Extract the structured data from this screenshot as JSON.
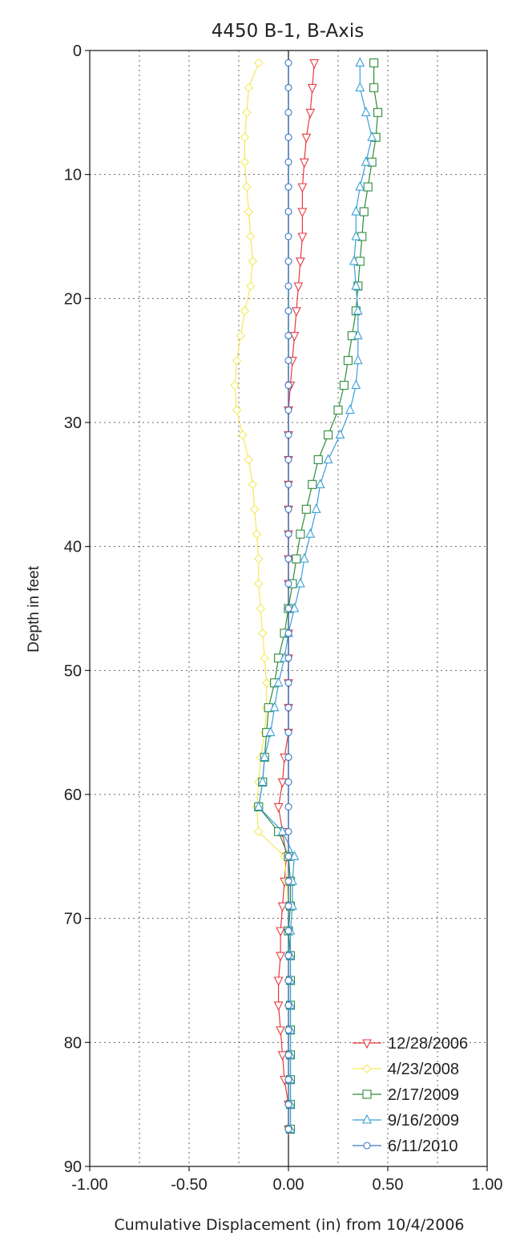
{
  "chart_data": {
    "type": "line",
    "title": "4450 B-1, B-Axis",
    "xlabel": "Cumulative Displacement (in) from 10/4/2006",
    "ylabel": "Depth in feet",
    "xlim": [
      -1.0,
      1.0
    ],
    "ylim": [
      0,
      90
    ],
    "y_inverted": true,
    "x_ticks": [
      -1.0,
      -0.5,
      0.0,
      0.5,
      1.0
    ],
    "x_tick_labels": [
      "-1.00",
      "-0.50",
      "0.00",
      "0.50",
      "1.00"
    ],
    "y_ticks": [
      0,
      10,
      20,
      30,
      40,
      50,
      60,
      70,
      80,
      90
    ],
    "y_tick_labels": [
      "0",
      "10",
      "20",
      "30",
      "40",
      "50",
      "60",
      "70",
      "80",
      "90"
    ],
    "grid": "dotted",
    "legend_position": "bottom-right",
    "depths": [
      1,
      3,
      5,
      7,
      9,
      11,
      13,
      15,
      17,
      19,
      21,
      23,
      25,
      27,
      29,
      31,
      33,
      35,
      37,
      39,
      41,
      43,
      45,
      47,
      49,
      51,
      53,
      55,
      57,
      59,
      61,
      63,
      65,
      67,
      69,
      71,
      73,
      75,
      77,
      79,
      81,
      83,
      85,
      87
    ],
    "series": [
      {
        "name": "12/28/2006",
        "color": "#e8393f",
        "marker": "triangle-down",
        "values": [
          0.13,
          0.12,
          0.11,
          0.09,
          0.08,
          0.07,
          0.07,
          0.07,
          0.06,
          0.05,
          0.04,
          0.03,
          0.02,
          0.01,
          0.0,
          0.0,
          0.0,
          0.0,
          0.0,
          0.0,
          0.0,
          0.0,
          0.0,
          0.0,
          0.0,
          0.0,
          0.0,
          0.0,
          -0.02,
          -0.03,
          -0.05,
          -0.03,
          -0.01,
          -0.02,
          -0.03,
          -0.04,
          -0.04,
          -0.05,
          -0.05,
          -0.04,
          -0.03,
          -0.02,
          0.0,
          0.0
        ]
      },
      {
        "name": "4/23/2008",
        "color": "#f5e85a",
        "marker": "diamond",
        "values": [
          -0.15,
          -0.2,
          -0.21,
          -0.22,
          -0.22,
          -0.21,
          -0.2,
          -0.19,
          -0.18,
          -0.19,
          -0.22,
          -0.24,
          -0.26,
          -0.27,
          -0.26,
          -0.23,
          -0.2,
          -0.18,
          -0.17,
          -0.16,
          -0.15,
          -0.15,
          -0.14,
          -0.13,
          -0.12,
          -0.11,
          -0.11,
          -0.12,
          -0.14,
          -0.15,
          -0.16,
          -0.15,
          -0.02,
          -0.01,
          0.0,
          0.0,
          0.0,
          0.0,
          0.0,
          0.0,
          0.0,
          0.0,
          0.0,
          0.0
        ]
      },
      {
        "name": "2/17/2009",
        "color": "#2e8b3a",
        "marker": "square",
        "values": [
          0.43,
          0.43,
          0.45,
          0.44,
          0.42,
          0.4,
          0.38,
          0.37,
          0.36,
          0.35,
          0.34,
          0.32,
          0.3,
          0.28,
          0.25,
          0.2,
          0.15,
          0.12,
          0.09,
          0.06,
          0.04,
          0.02,
          0.0,
          -0.02,
          -0.05,
          -0.07,
          -0.1,
          -0.11,
          -0.12,
          -0.13,
          -0.15,
          -0.05,
          0.0,
          0.01,
          0.01,
          0.0,
          0.01,
          0.01,
          0.01,
          0.01,
          0.01,
          0.01,
          0.01,
          0.01
        ]
      },
      {
        "name": "9/16/2009",
        "color": "#3a9fd8",
        "marker": "triangle-up",
        "values": [
          0.36,
          0.36,
          0.39,
          0.42,
          0.39,
          0.36,
          0.34,
          0.34,
          0.33,
          0.34,
          0.35,
          0.35,
          0.35,
          0.34,
          0.31,
          0.26,
          0.2,
          0.16,
          0.14,
          0.11,
          0.08,
          0.06,
          0.03,
          0.0,
          -0.02,
          -0.05,
          -0.07,
          -0.09,
          -0.12,
          -0.13,
          -0.15,
          -0.03,
          0.03,
          0.02,
          0.02,
          0.01,
          0.01,
          0.01,
          0.01,
          0.01,
          0.01,
          0.01,
          0.01,
          0.01
        ]
      },
      {
        "name": "6/11/2010",
        "color": "#3a78c8",
        "marker": "circle",
        "values": [
          0.0,
          0.0,
          0.0,
          0.0,
          0.0,
          0.0,
          0.0,
          0.0,
          0.0,
          0.0,
          0.0,
          0.0,
          0.0,
          0.0,
          0.0,
          0.0,
          0.0,
          0.0,
          0.0,
          0.0,
          0.0,
          0.0,
          0.0,
          0.0,
          0.0,
          0.0,
          0.0,
          0.0,
          0.0,
          0.0,
          0.0,
          0.0,
          0.0,
          0.0,
          0.0,
          0.0,
          0.0,
          0.0,
          0.0,
          0.0,
          0.0,
          0.0,
          0.0,
          0.0
        ]
      }
    ]
  }
}
